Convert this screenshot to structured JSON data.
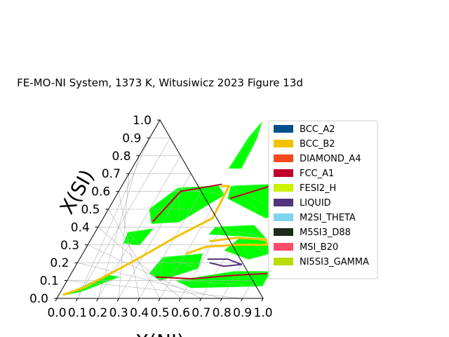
{
  "chart_data": {
    "type": "ternary",
    "title": "FE-MO-NI System, 1373 K, Witusiwicz 2023 Figure 13d",
    "xlabel": "X(NI)",
    "ylabel": "X(SI)",
    "axis_range": [
      0,
      1
    ],
    "ticks": [
      0.0,
      0.1,
      0.2,
      0.3,
      0.4,
      0.5,
      0.6,
      0.7,
      0.8,
      0.9,
      1.0
    ],
    "tick_labels": [
      "0.0",
      "0.1",
      "0.2",
      "0.3",
      "0.4",
      "0.5",
      "0.6",
      "0.7",
      "0.8",
      "0.9",
      "1.0"
    ],
    "grid": true,
    "legend": {
      "position": "right",
      "entries": [
        {
          "name": "BCC_A2",
          "color": "#00508c"
        },
        {
          "name": "BCC_B2",
          "color": "#f2c200"
        },
        {
          "name": "DIAMOND_A4",
          "color": "#f24a1a"
        },
        {
          "name": "FCC_A1",
          "color": "#c0002a"
        },
        {
          "name": "FESI2_H",
          "color": "#ccf200"
        },
        {
          "name": "LIQUID",
          "color": "#52357a"
        },
        {
          "name": "M2SI_THETA",
          "color": "#7fd4ec"
        },
        {
          "name": "M5SI3_D88",
          "color": "#1f2a1a"
        },
        {
          "name": "MSI_B20",
          "color": "#ff4a6a"
        },
        {
          "name": "NI5SI3_GAMMA",
          "color": "#bcdc00"
        }
      ]
    },
    "tie_line_color": "#00ff00",
    "regions": [
      {
        "name": "upper-apex-wedge",
        "points": [
          [
            0.5,
            0.99
          ],
          [
            0.52,
            0.9
          ],
          [
            0.53,
            0.73
          ],
          [
            0.47,
            0.73
          ],
          [
            0.48,
            0.9
          ]
        ]
      },
      {
        "name": "left-upper-fan",
        "points": [
          [
            0.28,
            0.62
          ],
          [
            0.47,
            0.63
          ],
          [
            0.52,
            0.58
          ],
          [
            0.38,
            0.43
          ],
          [
            0.25,
            0.42
          ],
          [
            0.2,
            0.5
          ]
        ]
      },
      {
        "name": "right-upper-fan",
        "points": [
          [
            0.53,
            0.63
          ],
          [
            0.73,
            0.64
          ],
          [
            0.82,
            0.49
          ],
          [
            0.79,
            0.45
          ],
          [
            0.55,
            0.56
          ]
        ]
      },
      {
        "name": "central-band",
        "points": [
          [
            0.57,
            0.4
          ],
          [
            0.75,
            0.41
          ],
          [
            0.84,
            0.34
          ],
          [
            0.72,
            0.35
          ],
          [
            0.56,
            0.36
          ]
        ]
      },
      {
        "name": "right-middle-fan",
        "points": [
          [
            0.72,
            0.34
          ],
          [
            0.86,
            0.32
          ],
          [
            0.9,
            0.25
          ],
          [
            0.82,
            0.22
          ],
          [
            0.68,
            0.27
          ]
        ]
      },
      {
        "name": "lower-left-fan",
        "points": [
          [
            0.4,
            0.23
          ],
          [
            0.58,
            0.25
          ],
          [
            0.6,
            0.17
          ],
          [
            0.45,
            0.1
          ],
          [
            0.38,
            0.14
          ]
        ]
      },
      {
        "name": "lower-band",
        "points": [
          [
            0.53,
            0.1
          ],
          [
            0.78,
            0.15
          ],
          [
            0.96,
            0.15
          ],
          [
            0.96,
            0.07
          ],
          [
            0.62,
            0.06
          ]
        ]
      },
      {
        "name": "left-edge-fan",
        "points": [
          [
            0.16,
            0.37
          ],
          [
            0.27,
            0.39
          ],
          [
            0.25,
            0.3
          ],
          [
            0.17,
            0.31
          ]
        ]
      },
      {
        "name": "bottom-left-sliver",
        "points": [
          [
            0.03,
            0.02
          ],
          [
            0.18,
            0.13
          ],
          [
            0.24,
            0.12
          ],
          [
            0.1,
            0.04
          ]
        ]
      }
    ],
    "phase_boundaries": [
      {
        "phase": "BCC_B2",
        "points": [
          [
            0.48,
            0.63
          ],
          [
            0.52,
            0.63
          ],
          [
            0.53,
            0.45
          ],
          [
            0.4,
            0.34
          ],
          [
            0.28,
            0.22
          ],
          [
            0.1,
            0.06
          ],
          [
            0.02,
            0.02
          ]
        ]
      },
      {
        "phase": "BCC_B2",
        "points": [
          [
            0.58,
            0.32
          ],
          [
            0.7,
            0.34
          ],
          [
            0.85,
            0.33
          ],
          [
            0.87,
            0.3
          ],
          [
            0.72,
            0.3
          ],
          [
            0.58,
            0.29
          ],
          [
            0.5,
            0.25
          ]
        ]
      },
      {
        "phase": "LIQUID",
        "points": [
          [
            0.62,
            0.22
          ],
          [
            0.72,
            0.22
          ],
          [
            0.8,
            0.19
          ],
          [
            0.72,
            0.18
          ],
          [
            0.64,
            0.2
          ]
        ]
      },
      {
        "phase": "FCC_A1",
        "points": [
          [
            0.42,
            0.12
          ],
          [
            0.6,
            0.11
          ],
          [
            0.8,
            0.13
          ],
          [
            0.95,
            0.14
          ]
        ]
      },
      {
        "phase": "FCC_A1",
        "points": [
          [
            0.25,
            0.43
          ],
          [
            0.3,
            0.6
          ],
          [
            0.48,
            0.64
          ]
        ]
      },
      {
        "phase": "FCC_A1",
        "points": [
          [
            0.56,
            0.56
          ],
          [
            0.72,
            0.63
          ],
          [
            0.8,
            0.47
          ]
        ]
      }
    ]
  }
}
